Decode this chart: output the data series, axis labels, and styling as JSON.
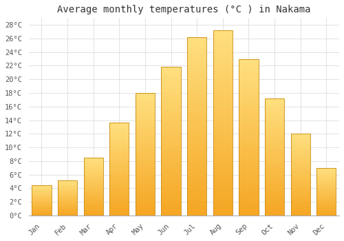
{
  "title": "Average monthly temperatures (°C ) in Nakama",
  "months": [
    "Jan",
    "Feb",
    "Mar",
    "Apr",
    "May",
    "Jun",
    "Jul",
    "Aug",
    "Sep",
    "Oct",
    "Nov",
    "Dec"
  ],
  "values": [
    4.5,
    5.2,
    8.5,
    13.7,
    18.0,
    21.8,
    26.2,
    27.2,
    23.0,
    17.2,
    12.0,
    7.0
  ],
  "bar_color_bottom": "#F5A623",
  "bar_color_top": "#FFD580",
  "bar_edge_color": "#C8880A",
  "background_color": "#ffffff",
  "plot_bg_color": "#ffffff",
  "grid_color": "#dddddd",
  "ylim": [
    0,
    29
  ],
  "ytick_step": 2,
  "title_fontsize": 10,
  "tick_fontsize": 7.5,
  "font_family": "monospace",
  "title_color": "#333333",
  "tick_color": "#555555"
}
